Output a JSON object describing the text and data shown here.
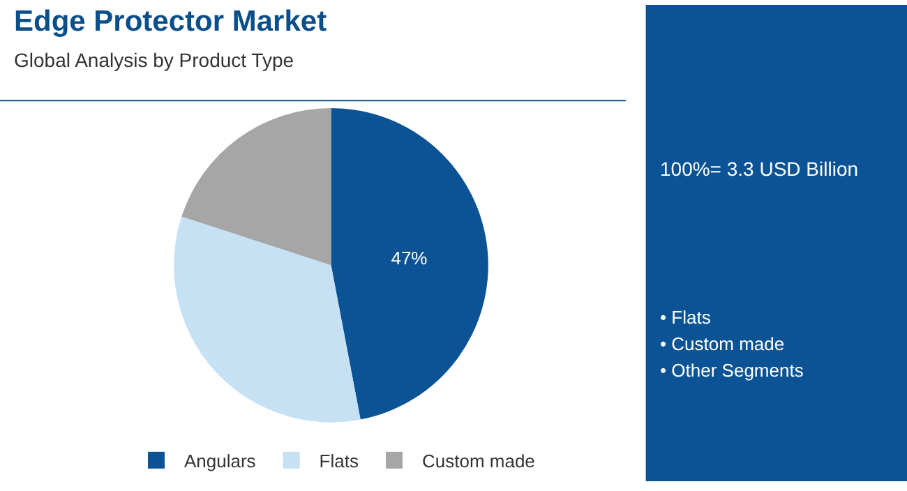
{
  "chart_data": {
    "type": "pie",
    "title": "Edge Protector Market",
    "subtitle": "Global Analysis by Product Type",
    "categories": [
      "Angulars",
      "Flats",
      "Custom made"
    ],
    "values": [
      47,
      33,
      20
    ],
    "colors": [
      "#0b5394",
      "#c5e1f3",
      "#a6a6a6"
    ],
    "value_labels": [
      "47%",
      null,
      null
    ],
    "legend": "bottom",
    "annotations": [
      "100%= 3.3 USD Billion",
      "• Flats",
      "• Custom made",
      "• Other Segments"
    ]
  }
}
